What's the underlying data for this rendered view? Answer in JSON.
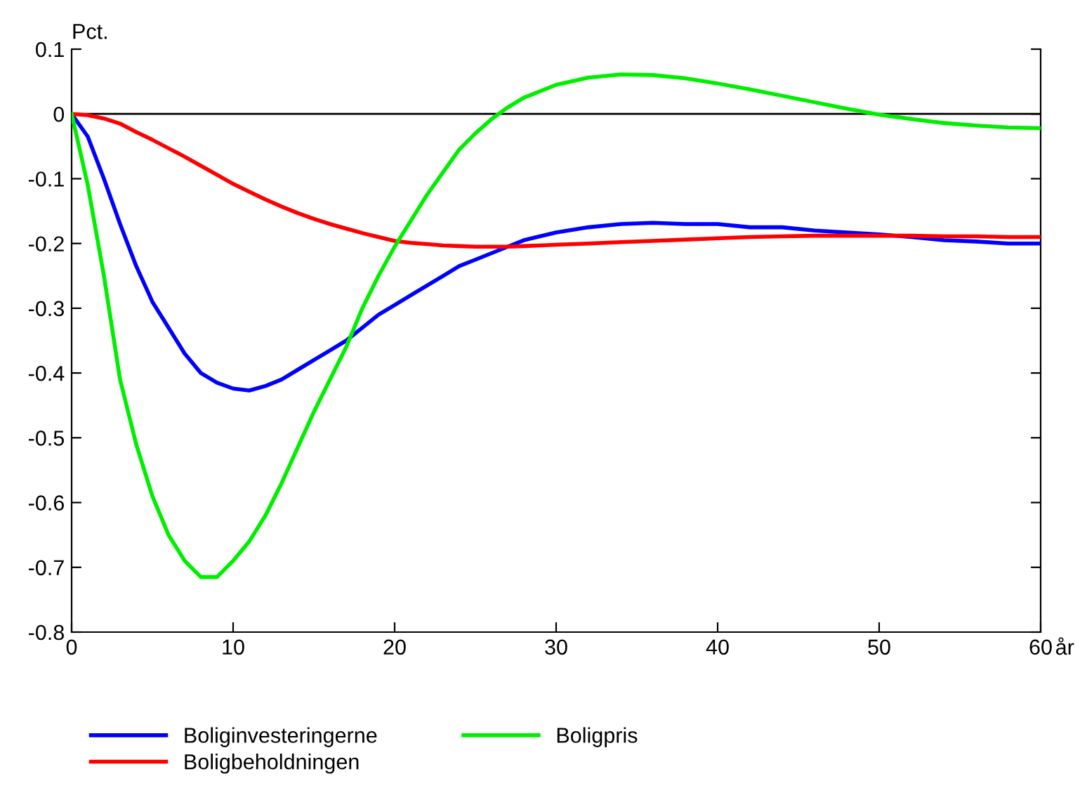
{
  "chart_data": {
    "type": "line",
    "ylabel": "Pct.",
    "xlabel": "år",
    "xlim": [
      0,
      60
    ],
    "xticks": [
      0,
      10,
      20,
      30,
      40,
      50,
      60
    ],
    "ylim": [
      -0.8,
      0.1
    ],
    "yticks": [
      {
        "value": -0.8,
        "label": "-0.8"
      },
      {
        "value": -0.7,
        "label": "-0.7"
      },
      {
        "value": -0.6,
        "label": "-0.6"
      },
      {
        "value": -0.5,
        "label": "-0.5"
      },
      {
        "value": -0.4,
        "label": "-0.4"
      },
      {
        "value": -0.3,
        "label": "-0.3"
      },
      {
        "value": -0.2,
        "label": "-0.2"
      },
      {
        "value": -0.1,
        "label": "-0.1"
      },
      0,
      0.1
    ],
    "x": [
      0,
      1,
      2,
      3,
      4,
      5,
      6,
      7,
      8,
      9,
      10,
      11,
      12,
      13,
      14,
      15,
      16,
      17,
      18,
      19,
      20,
      21,
      22,
      23,
      24,
      25,
      26,
      27,
      28,
      30,
      32,
      34,
      36,
      38,
      40,
      42,
      44,
      46,
      48,
      50,
      52,
      54,
      56,
      58,
      60
    ],
    "series": [
      {
        "name": "Boliginvesteringerne",
        "color": "#0000ff",
        "values": [
          0,
          -0.035,
          -0.1,
          -0.17,
          -0.235,
          -0.29,
          -0.33,
          -0.37,
          -0.4,
          -0.415,
          -0.424,
          -0.427,
          -0.42,
          -0.41,
          -0.395,
          -0.38,
          -0.365,
          -0.35,
          -0.33,
          -0.31,
          -0.295,
          -0.28,
          -0.265,
          -0.25,
          -0.235,
          -0.225,
          -0.215,
          -0.205,
          -0.195,
          -0.183,
          -0.175,
          -0.17,
          -0.168,
          -0.17,
          -0.17,
          -0.175,
          -0.175,
          -0.18,
          -0.183,
          -0.186,
          -0.19,
          -0.195,
          -0.197,
          -0.2,
          -0.2
        ]
      },
      {
        "name": "Boligbeholdningen",
        "color": "#ff0000",
        "values": [
          0,
          -0.002,
          -0.007,
          -0.015,
          -0.028,
          -0.04,
          -0.053,
          -0.066,
          -0.08,
          -0.094,
          -0.108,
          -0.12,
          -0.132,
          -0.143,
          -0.153,
          -0.162,
          -0.17,
          -0.177,
          -0.184,
          -0.19,
          -0.196,
          -0.199,
          -0.201,
          -0.203,
          -0.204,
          -0.205,
          -0.205,
          -0.205,
          -0.204,
          -0.202,
          -0.2,
          -0.198,
          -0.196,
          -0.194,
          -0.192,
          -0.19,
          -0.189,
          -0.188,
          -0.188,
          -0.188,
          -0.188,
          -0.189,
          -0.189,
          -0.19,
          -0.19
        ]
      },
      {
        "name": "Boligpris",
        "color": "#00ee00",
        "values": [
          0,
          -0.11,
          -0.25,
          -0.41,
          -0.51,
          -0.59,
          -0.65,
          -0.69,
          -0.715,
          -0.715,
          -0.69,
          -0.66,
          -0.62,
          -0.57,
          -0.515,
          -0.46,
          -0.41,
          -0.36,
          -0.3,
          -0.25,
          -0.205,
          -0.165,
          -0.125,
          -0.09,
          -0.055,
          -0.03,
          -0.008,
          0.01,
          0.025,
          0.045,
          0.056,
          0.061,
          0.06,
          0.055,
          0.047,
          0.038,
          0.028,
          0.018,
          0.008,
          -0.001,
          -0.008,
          -0.014,
          -0.018,
          -0.021,
          -0.022
        ]
      }
    ],
    "ref_lines": [
      {
        "axis": "y",
        "value": 0,
        "color": "#000000"
      }
    ],
    "grid": false,
    "legend": "bottom",
    "marker": "none",
    "line_style": "solid"
  }
}
